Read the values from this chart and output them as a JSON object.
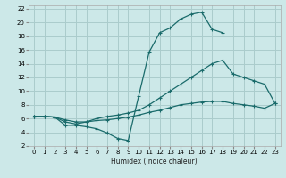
{
  "title": "",
  "xlabel": "Humidex (Indice chaleur)",
  "background_color": "#cce8e8",
  "grid_color": "#aacccc",
  "line_color": "#1a6b6b",
  "xlim": [
    -0.5,
    23.5
  ],
  "ylim": [
    2,
    22.5
  ],
  "xticks": [
    0,
    1,
    2,
    3,
    4,
    5,
    6,
    7,
    8,
    9,
    10,
    11,
    12,
    13,
    14,
    15,
    16,
    17,
    18,
    19,
    20,
    21,
    22,
    23
  ],
  "yticks": [
    2,
    4,
    6,
    8,
    10,
    12,
    14,
    16,
    18,
    20,
    22
  ],
  "line1_x": [
    0,
    1,
    2,
    3,
    4,
    5,
    6,
    7,
    8,
    9,
    10,
    11,
    12,
    13,
    14,
    15,
    16,
    17,
    18
  ],
  "line1_y": [
    6.3,
    6.3,
    6.2,
    5.0,
    5.0,
    4.8,
    4.5,
    3.9,
    3.1,
    2.8,
    9.3,
    15.7,
    18.5,
    19.2,
    20.5,
    21.2,
    21.5,
    19.0,
    18.5
  ],
  "line2_x": [
    0,
    1,
    2,
    3,
    4,
    5,
    6,
    7,
    8,
    9,
    10,
    11,
    12,
    13,
    14,
    15,
    16,
    17,
    18,
    19,
    20,
    21,
    22,
    23
  ],
  "line2_y": [
    6.3,
    6.3,
    6.2,
    5.5,
    5.2,
    5.5,
    6.0,
    6.3,
    6.5,
    6.8,
    7.2,
    8.0,
    9.0,
    10.0,
    11.0,
    12.0,
    13.0,
    14.0,
    14.5,
    12.5,
    12.0,
    11.5,
    11.0,
    8.2
  ],
  "line3_x": [
    0,
    1,
    2,
    3,
    4,
    5,
    6,
    7,
    8,
    9,
    10,
    11,
    12,
    13,
    14,
    15,
    16,
    17,
    18,
    19,
    20,
    21,
    22,
    23
  ],
  "line3_y": [
    6.3,
    6.3,
    6.2,
    5.8,
    5.5,
    5.5,
    5.7,
    5.8,
    6.0,
    6.2,
    6.5,
    6.9,
    7.2,
    7.6,
    8.0,
    8.2,
    8.4,
    8.5,
    8.5,
    8.2,
    8.0,
    7.8,
    7.5,
    8.2
  ]
}
